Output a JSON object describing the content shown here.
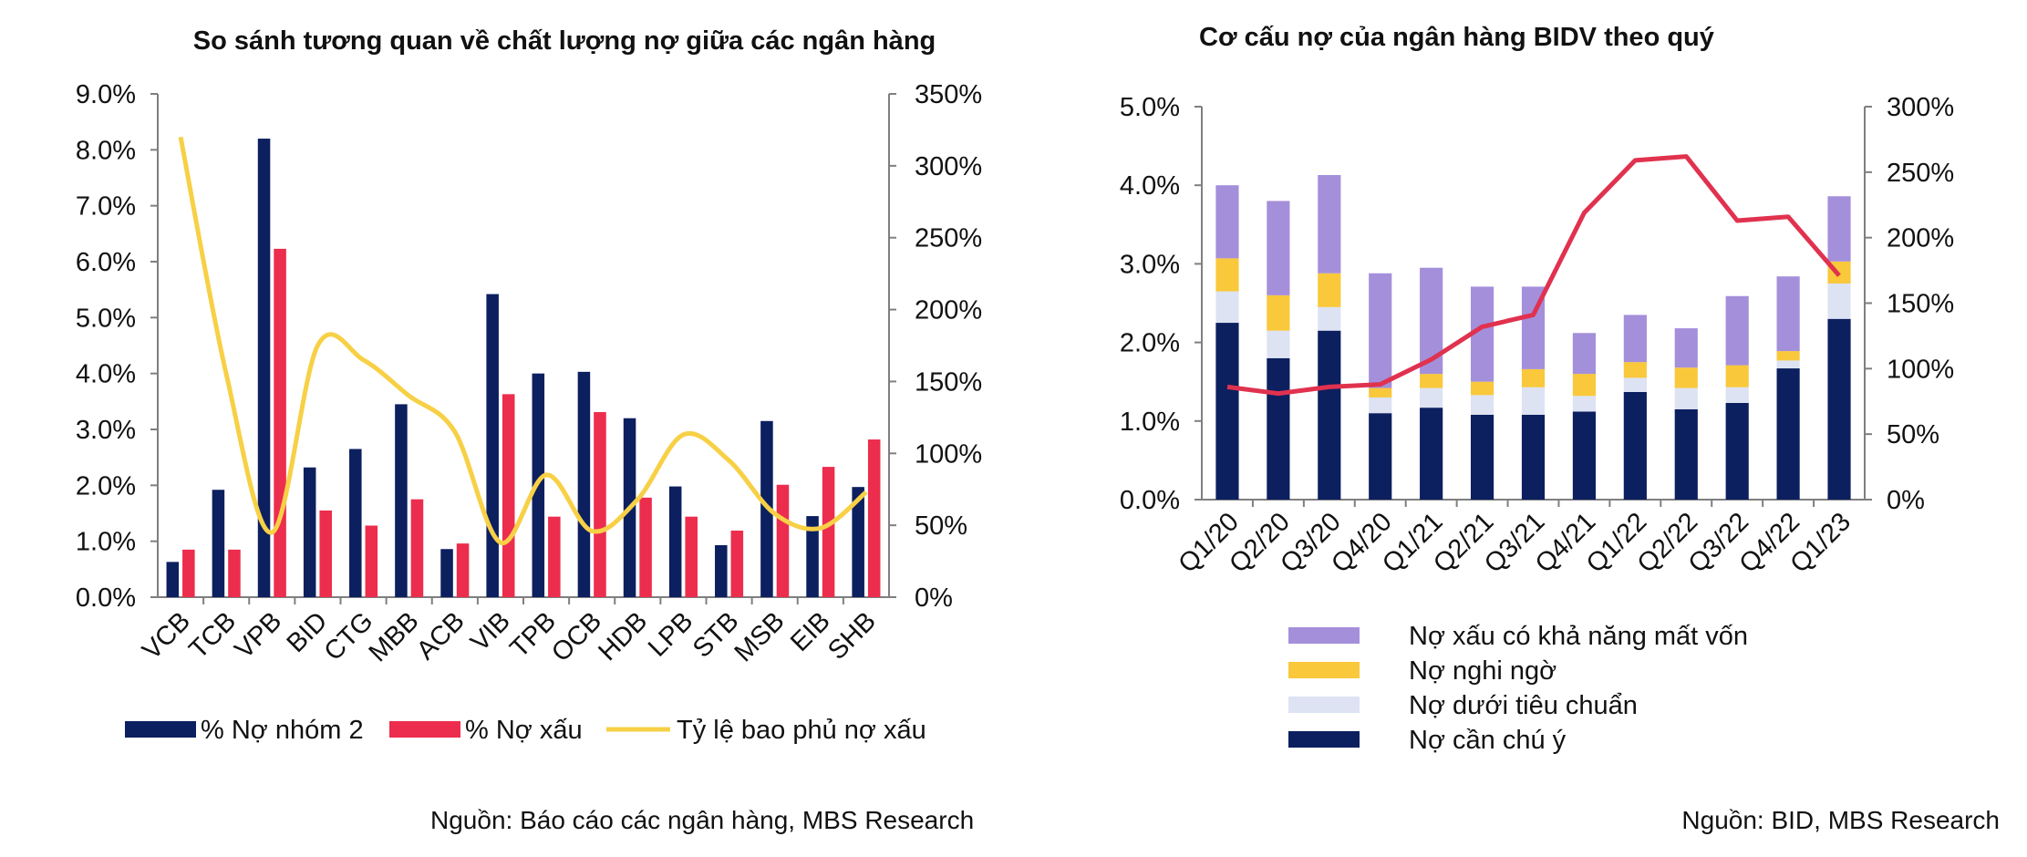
{
  "chart_data": [
    {
      "type": "bar",
      "title": "So sánh tương quan về chất lượng nợ giữa các ngân hàng",
      "categories": [
        "VCB",
        "TCB",
        "VPB",
        "BID",
        "CTG",
        "MBB",
        "ACB",
        "VIB",
        "TPB",
        "OCB",
        "HDB",
        "LPB",
        "STB",
        "MSB",
        "EIB",
        "SHB"
      ],
      "y_left": {
        "range": [
          0,
          9
        ],
        "ticks": [
          "0.0%",
          "1.0%",
          "2.0%",
          "3.0%",
          "4.0%",
          "5.0%",
          "6.0%",
          "7.0%",
          "8.0%",
          "9.0%"
        ]
      },
      "y_right": {
        "range": [
          0,
          350
        ],
        "ticks": [
          "0%",
          "50%",
          "100%",
          "150%",
          "200%",
          "250%",
          "300%",
          "350%"
        ]
      },
      "series": [
        {
          "name": "% Nợ nhóm 2",
          "axis": "left",
          "type": "bar",
          "color": "#0c1f5f",
          "values": [
            0.63,
            1.92,
            8.2,
            2.32,
            2.65,
            3.45,
            0.86,
            5.42,
            4.0,
            4.03,
            3.2,
            1.98,
            0.93,
            3.15,
            1.45,
            1.97
          ]
        },
        {
          "name": "% Nợ xấu",
          "axis": "left",
          "type": "bar",
          "color": "#ec2d4d",
          "values": [
            0.85,
            0.85,
            6.23,
            1.55,
            1.28,
            1.75,
            0.96,
            3.63,
            1.44,
            3.31,
            1.78,
            1.44,
            1.19,
            2.01,
            2.33,
            2.82
          ]
        },
        {
          "name": "Tỷ lệ bao phủ nợ xấu",
          "axis": "right",
          "type": "line",
          "color": "#f7d046",
          "values": [
            320,
            155,
            45,
            175,
            165,
            140,
            115,
            38,
            85,
            46,
            68,
            113,
            95,
            58,
            48,
            73
          ]
        }
      ]
    },
    {
      "type": "bar",
      "stacked": true,
      "title": "Cơ cấu nợ của ngân hàng BIDV theo quý",
      "categories": [
        "Q1/20",
        "Q2/20",
        "Q3/20",
        "Q4/20",
        "Q1/21",
        "Q2/21",
        "Q3/21",
        "Q4/21",
        "Q1/22",
        "Q2/22",
        "Q3/22",
        "Q4/22",
        "Q1/23"
      ],
      "y_left": {
        "range": [
          0,
          5
        ],
        "ticks": [
          "0.0%",
          "1.0%",
          "2.0%",
          "3.0%",
          "4.0%",
          "5.0%"
        ]
      },
      "y_right": {
        "range": [
          0,
          300
        ],
        "ticks": [
          "0%",
          "50%",
          "100%",
          "150%",
          "200%",
          "250%",
          "300%"
        ]
      },
      "series": [
        {
          "name": "Nợ cần chú ý",
          "axis": "left",
          "type": "bar",
          "color": "#0c1f5f",
          "values": [
            2.25,
            1.8,
            2.15,
            1.1,
            1.17,
            1.08,
            1.08,
            1.12,
            1.37,
            1.15,
            1.23,
            1.67,
            2.3
          ]
        },
        {
          "name": "Nợ dưới tiêu chuẩn",
          "axis": "left",
          "type": "bar",
          "color": "#dde3f3",
          "values": [
            0.4,
            0.35,
            0.3,
            0.2,
            0.25,
            0.25,
            0.35,
            0.2,
            0.18,
            0.27,
            0.2,
            0.1,
            0.45
          ]
        },
        {
          "name": "Nợ nghi ngờ",
          "axis": "left",
          "type": "bar",
          "color": "#f9c83b",
          "values": [
            0.42,
            0.45,
            0.43,
            0.12,
            0.18,
            0.17,
            0.23,
            0.28,
            0.2,
            0.26,
            0.28,
            0.12,
            0.28
          ]
        },
        {
          "name": "Nợ xấu có khả năng mất vốn",
          "axis": "left",
          "type": "bar",
          "color": "#a48fdb",
          "values": [
            0.93,
            1.2,
            1.25,
            1.46,
            1.35,
            1.21,
            1.05,
            0.52,
            0.6,
            0.5,
            0.88,
            0.95,
            0.83
          ]
        },
        {
          "name": "Tỷ lệ bao phủ nợ xấu",
          "axis": "right",
          "type": "line",
          "color": "#e0324f",
          "values": [
            86,
            81,
            86,
            88,
            107,
            132,
            141,
            219,
            259,
            262,
            213,
            216,
            171
          ]
        }
      ]
    }
  ],
  "sources": {
    "left": "Nguồn: Báo cáo các ngân hàng, MBS Research",
    "right": "Nguồn: BID, MBS Research"
  }
}
